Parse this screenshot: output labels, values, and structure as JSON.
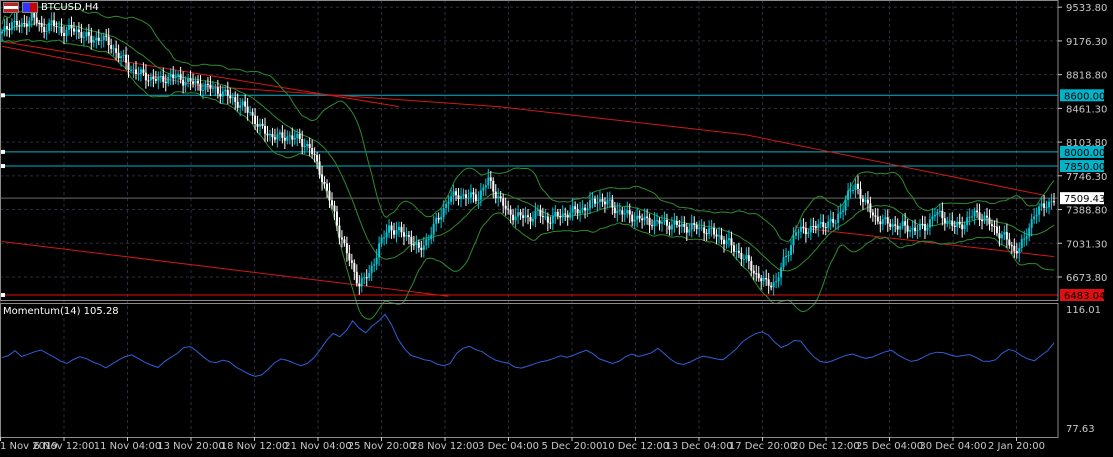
{
  "header": {
    "symbol": "BTCUSD,H4"
  },
  "indicator": {
    "label": "Momentum(14) 105.28"
  },
  "colors": {
    "bull": "#00c8d8",
    "bear": "#ffffff",
    "bands": "#2e8b2e",
    "trend": "#d01818",
    "momentum": "#2f5fd8",
    "hline": "#00b4cc",
    "grid": "#2c2c40",
    "axis": "#c8c8c8"
  },
  "chart_data": [
    {
      "type": "candlestick",
      "title": "BTCUSD,H4",
      "price_ticks": [
        "9533.80",
        "9176.30",
        "8818.80",
        "8461.30",
        "8103.80",
        "7746.30",
        "7388.80",
        "7031.30",
        "6673.80"
      ],
      "ylim": [
        6430,
        9610
      ],
      "x_ticks": [
        "1 Nov 2019",
        "6 Nov 12:00",
        "11 Nov 04:00",
        "13 Nov 20:00",
        "18 Nov 12:00",
        "21 Nov 04:00",
        "25 Nov 20:00",
        "28 Nov 12:00",
        "3 Dec 04:00",
        "5 Dec 20:00",
        "10 Dec 12:00",
        "13 Dec 04:00",
        "17 Dec 20:00",
        "20 Dec 12:00",
        "25 Dec 04:00",
        "30 Dec 04:00",
        "2 Jan 20:00"
      ],
      "horizontal_levels": [
        {
          "label": "8600.00",
          "value": 8600,
          "color": "#00b4cc"
        },
        {
          "label": "8000.00",
          "value": 8000,
          "color": "#00b4cc"
        },
        {
          "label": "7850.00",
          "value": 7850,
          "color": "#00b4cc"
        },
        {
          "label": "6483.04",
          "value": 6483,
          "color": "#e01010"
        }
      ],
      "current_price": "7509.43",
      "close_path": [
        [
          0,
          9250
        ],
        [
          4,
          9380
        ],
        [
          8,
          9320
        ],
        [
          12,
          9450
        ],
        [
          16,
          9300
        ],
        [
          20,
          9360
        ],
        [
          24,
          9280
        ],
        [
          28,
          9300
        ],
        [
          32,
          9260
        ],
        [
          36,
          9180
        ],
        [
          40,
          9220
        ],
        [
          44,
          9120
        ],
        [
          48,
          9000
        ],
        [
          52,
          8880
        ],
        [
          56,
          8820
        ],
        [
          60,
          8780
        ],
        [
          64,
          8760
        ],
        [
          68,
          8800
        ],
        [
          72,
          8770
        ],
        [
          76,
          8740
        ],
        [
          80,
          8700
        ],
        [
          84,
          8680
        ],
        [
          88,
          8640
        ],
        [
          92,
          8580
        ],
        [
          96,
          8500
        ],
        [
          100,
          8420
        ],
        [
          104,
          8250
        ],
        [
          108,
          8180
        ],
        [
          112,
          8150
        ],
        [
          116,
          8170
        ],
        [
          120,
          8120
        ],
        [
          124,
          8050
        ],
        [
          128,
          7800
        ],
        [
          132,
          7500
        ],
        [
          136,
          7150
        ],
        [
          140,
          6850
        ],
        [
          144,
          6600
        ],
        [
          148,
          6700
        ],
        [
          152,
          7000
        ],
        [
          156,
          7200
        ],
        [
          160,
          7150
        ],
        [
          164,
          7100
        ],
        [
          168,
          6950
        ],
        [
          172,
          7100
        ],
        [
          176,
          7300
        ],
        [
          180,
          7500
        ],
        [
          184,
          7550
        ],
        [
          188,
          7520
        ],
        [
          192,
          7530
        ],
        [
          196,
          7700
        ],
        [
          200,
          7520
        ],
        [
          204,
          7350
        ],
        [
          208,
          7320
        ],
        [
          212,
          7300
        ],
        [
          216,
          7350
        ],
        [
          220,
          7280
        ],
        [
          224,
          7320
        ],
        [
          228,
          7350
        ],
        [
          232,
          7380
        ],
        [
          236,
          7420
        ],
        [
          240,
          7500
        ],
        [
          244,
          7460
        ],
        [
          248,
          7380
        ],
        [
          252,
          7330
        ],
        [
          256,
          7300
        ],
        [
          260,
          7270
        ],
        [
          264,
          7250
        ],
        [
          268,
          7240
        ],
        [
          272,
          7220
        ],
        [
          276,
          7200
        ],
        [
          280,
          7200
        ],
        [
          284,
          7170
        ],
        [
          288,
          7120
        ],
        [
          292,
          7050
        ],
        [
          296,
          6950
        ],
        [
          300,
          6850
        ],
        [
          304,
          6700
        ],
        [
          308,
          6600
        ],
        [
          312,
          6620
        ],
        [
          316,
          6900
        ],
        [
          320,
          7150
        ],
        [
          324,
          7180
        ],
        [
          328,
          7200
        ],
        [
          332,
          7250
        ],
        [
          336,
          7250
        ],
        [
          340,
          7500
        ],
        [
          344,
          7650
        ],
        [
          348,
          7450
        ],
        [
          352,
          7300
        ],
        [
          356,
          7250
        ],
        [
          360,
          7220
        ],
        [
          364,
          7200
        ],
        [
          368,
          7180
        ],
        [
          372,
          7200
        ],
        [
          376,
          7350
        ],
        [
          380,
          7300
        ],
        [
          384,
          7200
        ],
        [
          388,
          7250
        ],
        [
          392,
          7350
        ],
        [
          396,
          7300
        ],
        [
          400,
          7180
        ],
        [
          404,
          7100
        ],
        [
          408,
          6950
        ],
        [
          412,
          7050
        ],
        [
          416,
          7350
        ],
        [
          420,
          7420
        ],
        [
          424,
          7509
        ]
      ],
      "overlays": [
        {
          "name": "",
          "style": "bands",
          "color": "#2e8b2e"
        },
        {
          "name": "",
          "style": "trendlines",
          "color": "#d01818"
        }
      ]
    },
    {
      "type": "line",
      "title": "Momentum(14) 105.28",
      "series": [
        {
          "name": "Momentum(14)",
          "values": [
            100.5,
            101.2,
            102.8,
            100.9,
            101.6,
            102.4,
            103.0,
            101.8,
            100.7,
            99.4,
            98.6,
            99.9,
            100.8,
            100.2,
            99.1,
            98.3,
            97.2,
            98.5,
            99.8,
            100.9,
            101.4,
            100.2,
            99.0,
            98.1,
            97.3,
            99.2,
            100.6,
            101.9,
            103.8,
            104.1,
            102.6,
            100.8,
            99.2,
            98.9,
            99.7,
            99.2,
            97.5,
            96.3,
            95.2,
            94.4,
            94.9,
            96.8,
            98.9,
            100.1,
            99.6,
            98.7,
            97.9,
            98.6,
            100.4,
            103.1,
            106.2,
            108.4,
            107.3,
            109.2,
            112.5,
            110.1,
            108.6,
            110.8,
            112.4,
            114.6,
            111.2,
            106.5,
            103.4,
            101.2,
            100.6,
            99.8,
            99.5,
            98.4,
            97.9,
            98.6,
            101.9,
            103.6,
            104.2,
            103.1,
            102.4,
            100.9,
            99.7,
            99.1,
            98.7,
            97.4,
            97.1,
            97.8,
            98.5,
            99.2,
            99.6,
            100.3,
            101.1,
            100.6,
            101.3,
            102.2,
            102.9,
            101.8,
            100.1,
            99.4,
            98.6,
            99.3,
            100.8,
            101.7,
            100.9,
            101.4,
            102.1,
            103.6,
            101.8,
            99.9,
            98.6,
            98.3,
            99.1,
            100.2,
            101.0,
            100.6,
            100.1,
            99.8,
            101.4,
            103.2,
            105.6,
            107.1,
            108.3,
            108.9,
            107.9,
            105.5,
            103.8,
            104.7,
            106.1,
            105.9,
            103.2,
            100.8,
            99.3,
            98.9,
            99.6,
            100.5,
            101.3,
            101.7,
            100.9,
            100.3,
            100.7,
            101.6,
            102.4,
            102.9,
            101.4,
            100.2,
            99.3,
            99.7,
            100.8,
            101.8,
            102.3,
            102.1,
            101.4,
            100.9,
            101.2,
            101.5,
            100.6,
            99.4,
            99.3,
            99.8,
            101.9,
            103.2,
            102.6,
            101.1,
            100.1,
            99.5,
            101.2,
            102.7,
            105.28
          ]
        }
      ],
      "ylim": [
        77.63,
        116.01
      ],
      "y_ticks": [
        "116.01",
        "77.63"
      ]
    }
  ]
}
